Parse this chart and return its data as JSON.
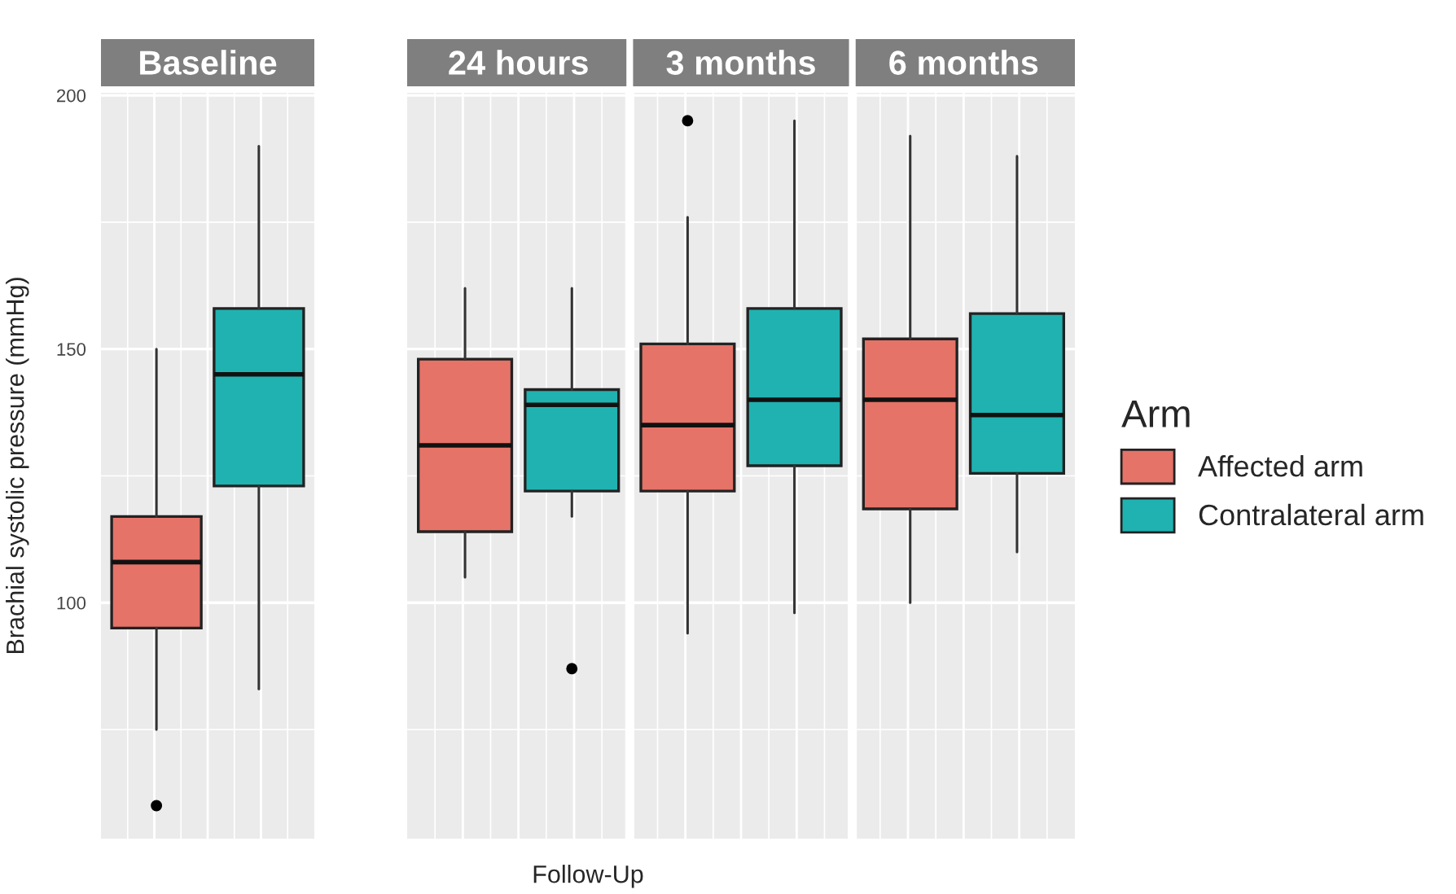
{
  "chart_data": [
    {
      "type": "box",
      "ylabel": "Brachial systolic pressure (mmHg)",
      "categories": [
        "Baseline"
      ],
      "ylim": [
        53.5,
        200.5
      ],
      "yticks": [
        100,
        150,
        200
      ],
      "grid": true,
      "tick_labels": "y",
      "series": [
        {
          "color": "#e57368",
          "boxes": [
            {
              "low": 75,
              "q1": 95,
              "median": 108,
              "q3": 117,
              "high": 150,
              "outliers": [
                60
              ]
            }
          ]
        },
        {
          "color": "#20b2b0",
          "boxes": [
            {
              "low": 83,
              "q1": 123,
              "median": 145,
              "q3": 158,
              "high": 190
            }
          ]
        }
      ]
    },
    {
      "type": "box",
      "xlabel": "Follow-Up",
      "categories": [
        "24 hours",
        "3 months",
        "6 months"
      ],
      "ylim": [
        53.5,
        200.5
      ],
      "yticks": [
        100,
        150,
        200
      ],
      "grid": true,
      "tick_labels": "x",
      "legend": "right",
      "legend_title": "Arm",
      "series": [
        {
          "name": "Affected arm",
          "color": "#e57368",
          "boxes": [
            {
              "low": 105,
              "q1": 114,
              "median": 131,
              "q3": 148,
              "high": 162
            },
            {
              "low": 94,
              "q1": 122,
              "median": 135,
              "q3": 151,
              "high": 176,
              "outliers": [
                195
              ]
            },
            {
              "low": 100,
              "q1": 118.5,
              "median": 140,
              "q3": 152,
              "high": 192
            }
          ]
        },
        {
          "name": "Contralateral arm",
          "color": "#20b2b0",
          "boxes": [
            {
              "low": 117,
              "q1": 122,
              "median": 139,
              "q3": 142,
              "high": 162,
              "outliers": [
                87
              ]
            },
            {
              "low": 98,
              "q1": 127,
              "median": 140,
              "q3": 158,
              "high": 195
            },
            {
              "low": 110,
              "q1": 125.5,
              "median": 137,
              "q3": 157,
              "high": 188
            }
          ]
        }
      ]
    }
  ]
}
